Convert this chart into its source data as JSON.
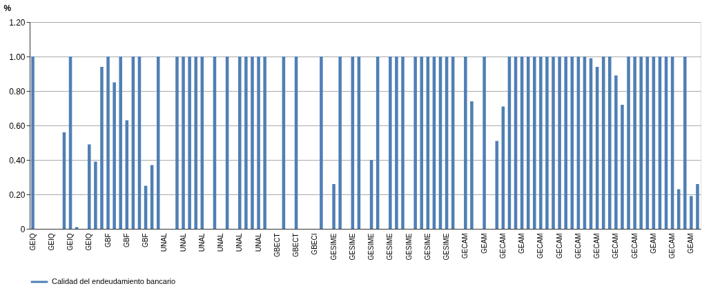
{
  "chart_data": {
    "type": "bar",
    "ylabel": "%",
    "categories": [
      "GEIQ",
      null,
      null,
      "GEIQ",
      null,
      null,
      "GEIQ",
      null,
      null,
      "GEIQ",
      null,
      null,
      "GBF",
      null,
      null,
      "GBF",
      null,
      null,
      "GBF",
      null,
      null,
      "UNAL",
      null,
      null,
      "UNAL",
      null,
      null,
      "UNAL",
      null,
      null,
      "UNAL",
      null,
      null,
      "UNAL",
      null,
      null,
      "UNAL",
      null,
      null,
      "GBECT",
      null,
      null,
      "GBECT",
      null,
      null,
      "GBECI",
      null,
      null,
      "GESIME",
      null,
      null,
      "GESIME",
      null,
      null,
      "GESIME",
      null,
      null,
      "GESIME",
      null,
      null,
      "GESIME",
      null,
      null,
      "GESIME",
      null,
      null,
      "GESIME",
      null,
      null,
      "GECAM",
      null,
      null,
      "GEAM",
      null,
      null,
      "GECAM",
      null,
      null,
      "GEAM",
      null,
      null,
      "GECAM",
      null,
      null,
      "GECAM",
      null,
      null,
      "GECAM",
      null,
      null,
      "GECAM",
      null,
      null,
      "GECAM",
      null,
      null,
      "GECAM",
      null,
      null,
      "GEAM",
      null,
      null,
      "GECAM",
      null,
      null,
      "GEAM",
      null
    ],
    "series": [
      {
        "name": "Calidad del endeudamiento bancario",
        "color": "#4f7fb5",
        "values": [
          1,
          0,
          0,
          0,
          0,
          0.56,
          1,
          0.01,
          0,
          0.49,
          0.39,
          0.94,
          1,
          0.85,
          1,
          0.63,
          1,
          1,
          0.25,
          0.37,
          1,
          0,
          0,
          1,
          1,
          1,
          1,
          1,
          0,
          1,
          0,
          1,
          0,
          1,
          1,
          1,
          1,
          1,
          0,
          0,
          1,
          0,
          1,
          0,
          0,
          0,
          1,
          0,
          0.26,
          1,
          0,
          1,
          1,
          0,
          0.4,
          1,
          0,
          1,
          1,
          1,
          0,
          1,
          1,
          1,
          1,
          1,
          1,
          1,
          0,
          1,
          0.74,
          0,
          1,
          0,
          0.51,
          0.71,
          1,
          1,
          1,
          1,
          1,
          1,
          1,
          1,
          1,
          1,
          1,
          1,
          1,
          0.99,
          0.94,
          1,
          1,
          0.89,
          0.72,
          1,
          1,
          1,
          1,
          1,
          1,
          1,
          1,
          0.23,
          1,
          0.19,
          0.26
        ]
      }
    ],
    "ylim": [
      0,
      1.2
    ],
    "yticks": [
      0,
      {
        "value": 0.2,
        "label": "0.20"
      },
      {
        "value": 0.4,
        "label": "0.40"
      },
      {
        "value": 0.6,
        "label": "0.60"
      },
      {
        "value": 0.8,
        "label": "0.80"
      },
      {
        "value": 1.0,
        "label": "1.00"
      },
      {
        "value": 1.2,
        "label": "1.20"
      }
    ],
    "grid": "y",
    "legend": "bottom"
  }
}
